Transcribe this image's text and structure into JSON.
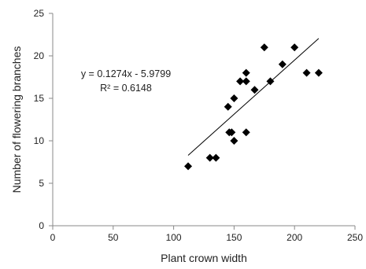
{
  "chart_data": {
    "type": "scatter",
    "title": "",
    "xlabel": "Plant crown width",
    "ylabel": "Number of flowering branches",
    "xlim": [
      0,
      250
    ],
    "ylim": [
      0,
      25
    ],
    "xticks": [
      0,
      50,
      100,
      150,
      200,
      250
    ],
    "yticks": [
      0,
      5,
      10,
      15,
      20,
      25
    ],
    "grid": false,
    "legend": "none",
    "points": [
      {
        "x": 112,
        "y": 7
      },
      {
        "x": 130,
        "y": 8
      },
      {
        "x": 135,
        "y": 8
      },
      {
        "x": 145,
        "y": 14
      },
      {
        "x": 146,
        "y": 11
      },
      {
        "x": 148,
        "y": 11
      },
      {
        "x": 150,
        "y": 10
      },
      {
        "x": 150,
        "y": 15
      },
      {
        "x": 155,
        "y": 17
      },
      {
        "x": 160,
        "y": 17
      },
      {
        "x": 160,
        "y": 18
      },
      {
        "x": 160,
        "y": 11
      },
      {
        "x": 167,
        "y": 16
      },
      {
        "x": 175,
        "y": 21
      },
      {
        "x": 180,
        "y": 17
      },
      {
        "x": 190,
        "y": 19
      },
      {
        "x": 200,
        "y": 21
      },
      {
        "x": 210,
        "y": 18
      },
      {
        "x": 220,
        "y": 18
      }
    ],
    "trendline": {
      "slope": 0.1274,
      "intercept": -5.9799,
      "x_range": [
        112,
        220
      ]
    },
    "annotations": {
      "equation": "y = 0.1274x - 5.9799",
      "r_squared": "R² = 0.6148"
    },
    "colors": {
      "marker": "#000000",
      "axis": "#888888",
      "trendline": "#000000"
    }
  }
}
